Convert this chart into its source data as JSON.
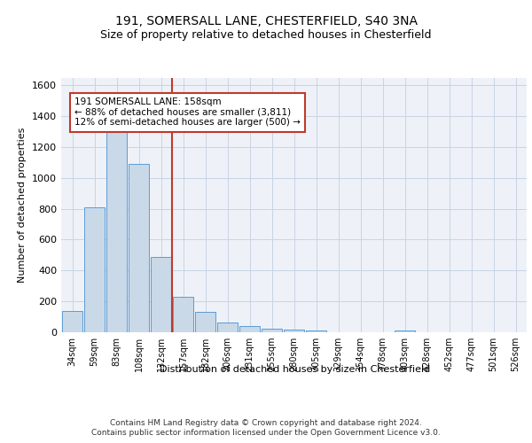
{
  "title1": "191, SOMERSALL LANE, CHESTERFIELD, S40 3NA",
  "title2": "Size of property relative to detached houses in Chesterfield",
  "xlabel": "Distribution of detached houses by size in Chesterfield",
  "ylabel": "Number of detached properties",
  "categories": [
    "34sqm",
    "59sqm",
    "83sqm",
    "108sqm",
    "132sqm",
    "157sqm",
    "182sqm",
    "206sqm",
    "231sqm",
    "255sqm",
    "280sqm",
    "305sqm",
    "329sqm",
    "354sqm",
    "378sqm",
    "403sqm",
    "428sqm",
    "452sqm",
    "477sqm",
    "501sqm",
    "526sqm"
  ],
  "values": [
    140,
    810,
    1300,
    1090,
    490,
    230,
    130,
    65,
    38,
    25,
    15,
    13,
    0,
    0,
    0,
    13,
    0,
    0,
    0,
    0,
    0
  ],
  "bar_color": "#c9d9e8",
  "bar_edge_color": "#5b9bd5",
  "grid_color": "#c8d4e3",
  "background_color": "#eef2f8",
  "vline_color": "#c0392b",
  "annotation_text": "191 SOMERSALL LANE: 158sqm\n← 88% of detached houses are smaller (3,811)\n12% of semi-detached houses are larger (500) →",
  "annotation_box_color": "white",
  "annotation_box_edge": "#c0392b",
  "footer1": "Contains HM Land Registry data © Crown copyright and database right 2024.",
  "footer2": "Contains public sector information licensed under the Open Government Licence v3.0.",
  "ylim": [
    0,
    1650
  ],
  "yticks": [
    0,
    200,
    400,
    600,
    800,
    1000,
    1200,
    1400,
    1600
  ]
}
